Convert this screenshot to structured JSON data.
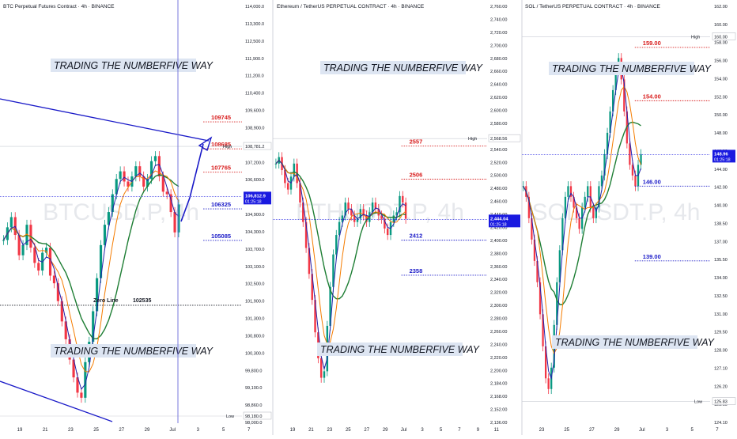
{
  "chart_data": [
    {
      "type": "candlestick",
      "title": "BTC Perpetual Futures Contract · 4h · BINANCE",
      "watermark": "BTCUSD.P, 4h",
      "banners": [
        "TRADING THE NUMBERFIVE WAY",
        "TRADING THE NUMBERFIVE WAY"
      ],
      "x_ticks": [
        "19",
        "21",
        "23",
        "25",
        "27",
        "29",
        "Jul",
        "3",
        "5",
        "7"
      ],
      "y_ticks": [
        "114,000.0",
        "113,300.0",
        "112,500.0",
        "111,900.0",
        "111,200.0",
        "110,400.0",
        "109,600.0",
        "108,900.0",
        "108,000.0",
        "107,200.0",
        "106,600.0",
        "105,900.0",
        "104,900.0",
        "104,300.0",
        "103,700.0",
        "103,100.0",
        "102,500.0",
        "101,900.0",
        "101,300.0",
        "100,800.0",
        "100,300.0",
        "99,800.0",
        "99,100.0",
        "98,860.0",
        "98,000.0"
      ],
      "ylim": [
        97900,
        114100
      ],
      "last_price": "106,812.9",
      "countdown": "01:25:18",
      "high_label": "High",
      "high_value": "108,781.2",
      "low_label": "Low",
      "low_value": "98,180.0",
      "zero_line": {
        "label": "Zero Line",
        "value_label": "102535",
        "value": 102535
      },
      "levels": [
        {
          "label": "109745",
          "value": 109745,
          "color": "#d81b1b"
        },
        {
          "label": "108685",
          "value": 108685,
          "color": "#d81b1b"
        },
        {
          "label": "107765",
          "value": 107765,
          "color": "#d81b1b"
        },
        {
          "label": "106325",
          "value": 106325,
          "color": "#1a1ac8"
        },
        {
          "label": "105085",
          "value": 105085,
          "color": "#1a1ac8"
        }
      ],
      "close_series": [
        105100,
        105600,
        106000,
        105300,
        104500,
        104900,
        105700,
        104800,
        104200,
        103900,
        104600,
        104800,
        103700,
        103400,
        102700,
        101900,
        101200,
        100400,
        99700,
        99100,
        98900,
        100300,
        101100,
        102300,
        103600,
        104900,
        105700,
        106200,
        106900,
        107500,
        107800,
        107400,
        107200,
        107600,
        108000,
        107600,
        107200,
        107500,
        108200,
        108400,
        107600,
        107000,
        106900,
        106200,
        105400,
        106500
      ]
    },
    {
      "type": "candlestick",
      "title": "Ethereum / TetherUS PERPETUAL CONTRACT · 4h · BINANCE",
      "watermark": "ETHUSDT.P, 4h",
      "banners": [
        "TRADING THE NUMBERFIVE WAY",
        "TRADING THE NUMBERFIVE WAY"
      ],
      "x_ticks": [
        "19",
        "21",
        "23",
        "25",
        "27",
        "29",
        "Jul",
        "3",
        "5",
        "7",
        "9",
        "11"
      ],
      "y_ticks": [
        "2,760.00",
        "2,740.00",
        "2,720.00",
        "2,700.00",
        "2,680.00",
        "2,660.00",
        "2,640.00",
        "2,620.00",
        "2,600.00",
        "2,580.00",
        "2,560.00",
        "2,540.00",
        "2,520.00",
        "2,500.00",
        "2,480.00",
        "2,460.00",
        "2,440.00",
        "2,420.00",
        "2,400.00",
        "2,380.00",
        "2,360.00",
        "2,340.00",
        "2,320.00",
        "2,300.00",
        "2,280.00",
        "2,260.00",
        "2,240.00",
        "2,220.00",
        "2,200.00",
        "2,184.00",
        "2,168.00",
        "2,152.00",
        "2,136.00"
      ],
      "ylim": [
        2130,
        2765
      ],
      "last_price": "2,444.04",
      "countdown": "01:25:18",
      "high_label": "High",
      "high_value": "2,568.56",
      "levels": [
        {
          "label": "2557",
          "value": 2557,
          "color": "#d81b1b"
        },
        {
          "label": "2506",
          "value": 2506,
          "color": "#d81b1b"
        },
        {
          "label": "2412",
          "value": 2412,
          "color": "#1a1ac8"
        },
        {
          "label": "2358",
          "value": 2358,
          "color": "#1a1ac8"
        }
      ],
      "close_series": [
        2530,
        2540,
        2520,
        2500,
        2490,
        2510,
        2530,
        2500,
        2470,
        2440,
        2400,
        2360,
        2320,
        2270,
        2230,
        2200,
        2210,
        2280,
        2340,
        2390,
        2420,
        2440,
        2450,
        2470,
        2460,
        2450,
        2440,
        2445,
        2460,
        2450,
        2440,
        2455,
        2470,
        2460,
        2450,
        2445,
        2430,
        2420,
        2440,
        2450,
        2455,
        2480,
        2470,
        2445
      ]
    },
    {
      "type": "candlestick",
      "title": "SOL / TetherUS PERPETUAL CONTRACT · 4h · BINANCE",
      "watermark": "SOLUSDT.P, 4h",
      "banners": [
        "TRADING THE NUMBERFIVE WAY",
        "TRADING THE NUMBERFIVE WAY"
      ],
      "x_ticks": [
        "23",
        "25",
        "27",
        "29",
        "Jul",
        "3",
        "5",
        "7"
      ],
      "y_ticks": [
        "162.00",
        "160.00",
        "158.00",
        "156.00",
        "154.00",
        "152.00",
        "150.00",
        "148.00",
        "146.00",
        "144.00",
        "142.00",
        "140.00",
        "138.50",
        "137.00",
        "135.50",
        "134.00",
        "132.50",
        "131.00",
        "129.50",
        "128.00",
        "127.10",
        "126.20",
        "125.10",
        "124.10"
      ],
      "ylim": [
        123.8,
        162.4
      ],
      "last_price": "148.96",
      "countdown": "01:25:18",
      "high_label": "High",
      "high_value": "160.00",
      "low_label": "Low",
      "low_value": "125.83",
      "levels": [
        {
          "label": "159.00",
          "value": 159.0,
          "color": "#d81b1b"
        },
        {
          "label": "154.00",
          "value": 154.0,
          "color": "#d81b1b"
        },
        {
          "label": "146.00",
          "value": 146.0,
          "color": "#1a1ac8"
        },
        {
          "label": "139.00",
          "value": 139.0,
          "color": "#1a1ac8"
        }
      ],
      "close_series": [
        146,
        145,
        143,
        141,
        139,
        137,
        134,
        131,
        128,
        127,
        129,
        133,
        137,
        140,
        143,
        145,
        146,
        145,
        144,
        143,
        142,
        144,
        145,
        146,
        144,
        143,
        144,
        146,
        147,
        149,
        151,
        153,
        155,
        157,
        158,
        156,
        153,
        150,
        148,
        147,
        146,
        148,
        149
      ]
    }
  ]
}
